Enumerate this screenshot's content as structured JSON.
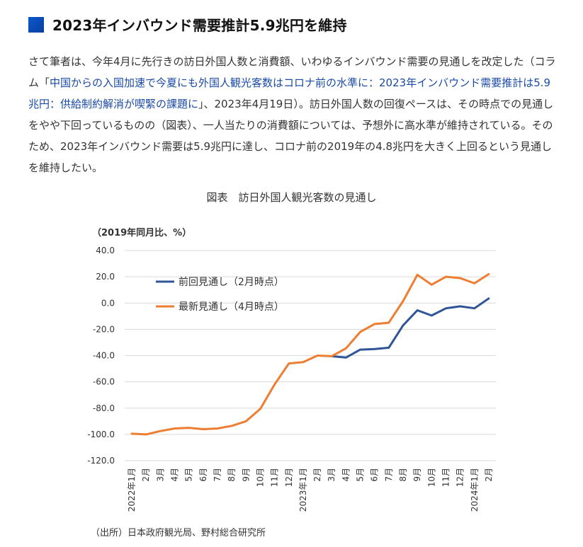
{
  "header": {
    "title": "2023年インバウンド需要推計5.9兆円を維持"
  },
  "article": {
    "before_link": "さて筆者は、今年4月に先行きの訪日外国人数と消費額、いわゆるインバウンド需要の見通しを改定した（コラム「",
    "link_text": "中国からの入国加速で今夏にも外国人観光客数はコロナ前の水準に：2023年インバウンド需要推計は5.9兆円：供給制約解消が喫緊の課題に",
    "after_link": "」、2023年4月19日）。訪日外国人数の回復ペースは、その時点での見通しをやや下回っているものの（図表）、一人当たりの消費額については、予想外に高水準が維持されている。そのため、2023年インバウンド需要は5.9兆円に達し、コロナ前の2019年の4.8兆円を大きく上回るという見通しを維持したい。"
  },
  "chart_data": {
    "type": "line",
    "title": "図表　訪日外国人観光客数の見通し",
    "ylabel": "（2019年同月比、%）",
    "ylim": [
      -120,
      40
    ],
    "yticks": [
      "40.0",
      "20.0",
      "0.0",
      "-20.0",
      "-40.0",
      "-60.0",
      "-80.0",
      "-100.0",
      "-120.0"
    ],
    "categories": [
      "2022年1月",
      "2月",
      "3月",
      "4月",
      "5月",
      "6月",
      "7月",
      "8月",
      "9月",
      "10月",
      "11月",
      "12月",
      "2023年1月",
      "2月",
      "3月",
      "4月",
      "5月",
      "6月",
      "7月",
      "8月",
      "9月",
      "10月",
      "11月",
      "12月",
      "2024年1月",
      "2月"
    ],
    "series": [
      {
        "name": "前回見通し（2月時点）",
        "color": "#2f5597",
        "values": [
          null,
          null,
          null,
          null,
          null,
          null,
          null,
          null,
          null,
          null,
          null,
          null,
          null,
          null,
          -40.5,
          -41.5,
          -35.5,
          -35.0,
          -34.0,
          -17.0,
          -5.5,
          -9.5,
          -4.0,
          -2.5,
          -4.0,
          3.5
        ]
      },
      {
        "name": "最新見通し（4月時点）",
        "color": "#ed7d31",
        "values": [
          -99.5,
          -100.0,
          -97.5,
          -95.5,
          -95.0,
          -96.0,
          -95.5,
          -93.5,
          -90.0,
          -80.5,
          -62.0,
          -46.0,
          -45.0,
          -40.0,
          -40.5,
          -34.5,
          -22.0,
          -16.0,
          -15.0,
          1.5,
          21.5,
          14.0,
          20.0,
          19.0,
          15.0,
          22.0
        ]
      }
    ],
    "grid": true,
    "legend": "upper-left inside plot"
  },
  "source": "（出所）日本政府観光局、野村総合研究所"
}
